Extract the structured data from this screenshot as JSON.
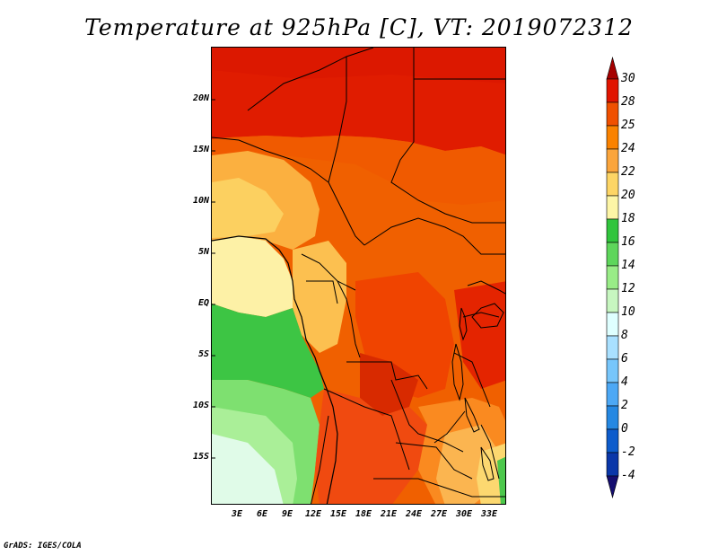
{
  "title": "Temperature at 925hPa [C], VT: 2019072312",
  "footer": "GrADS: IGES/COLA",
  "map": {
    "lat_labels": [
      "20N",
      "15N",
      "10N",
      "5N",
      "EQ",
      "5S",
      "10S",
      "15S"
    ],
    "lon_labels": [
      "3E",
      "6E",
      "9E",
      "12E",
      "15E",
      "18E",
      "21E",
      "24E",
      "27E",
      "30E",
      "33E"
    ]
  },
  "colorbar": {
    "labels": [
      "30",
      "28",
      "25",
      "24",
      "22",
      "20",
      "18",
      "16",
      "14",
      "12",
      "10",
      "8",
      "6",
      "4",
      "2",
      "0",
      "-2",
      "-4"
    ],
    "colors": [
      "#a50000",
      "#e11400",
      "#f05000",
      "#fa8200",
      "#fba53c",
      "#fdd565",
      "#fdf5a6",
      "#31c53d",
      "#5ed65b",
      "#99ec87",
      "#c7f6c0",
      "#dfffff",
      "#a9e0ff",
      "#77c6fb",
      "#4ca8f5",
      "#2588e2",
      "#0d5ccc",
      "#0a37a9",
      "#150e70"
    ]
  }
}
